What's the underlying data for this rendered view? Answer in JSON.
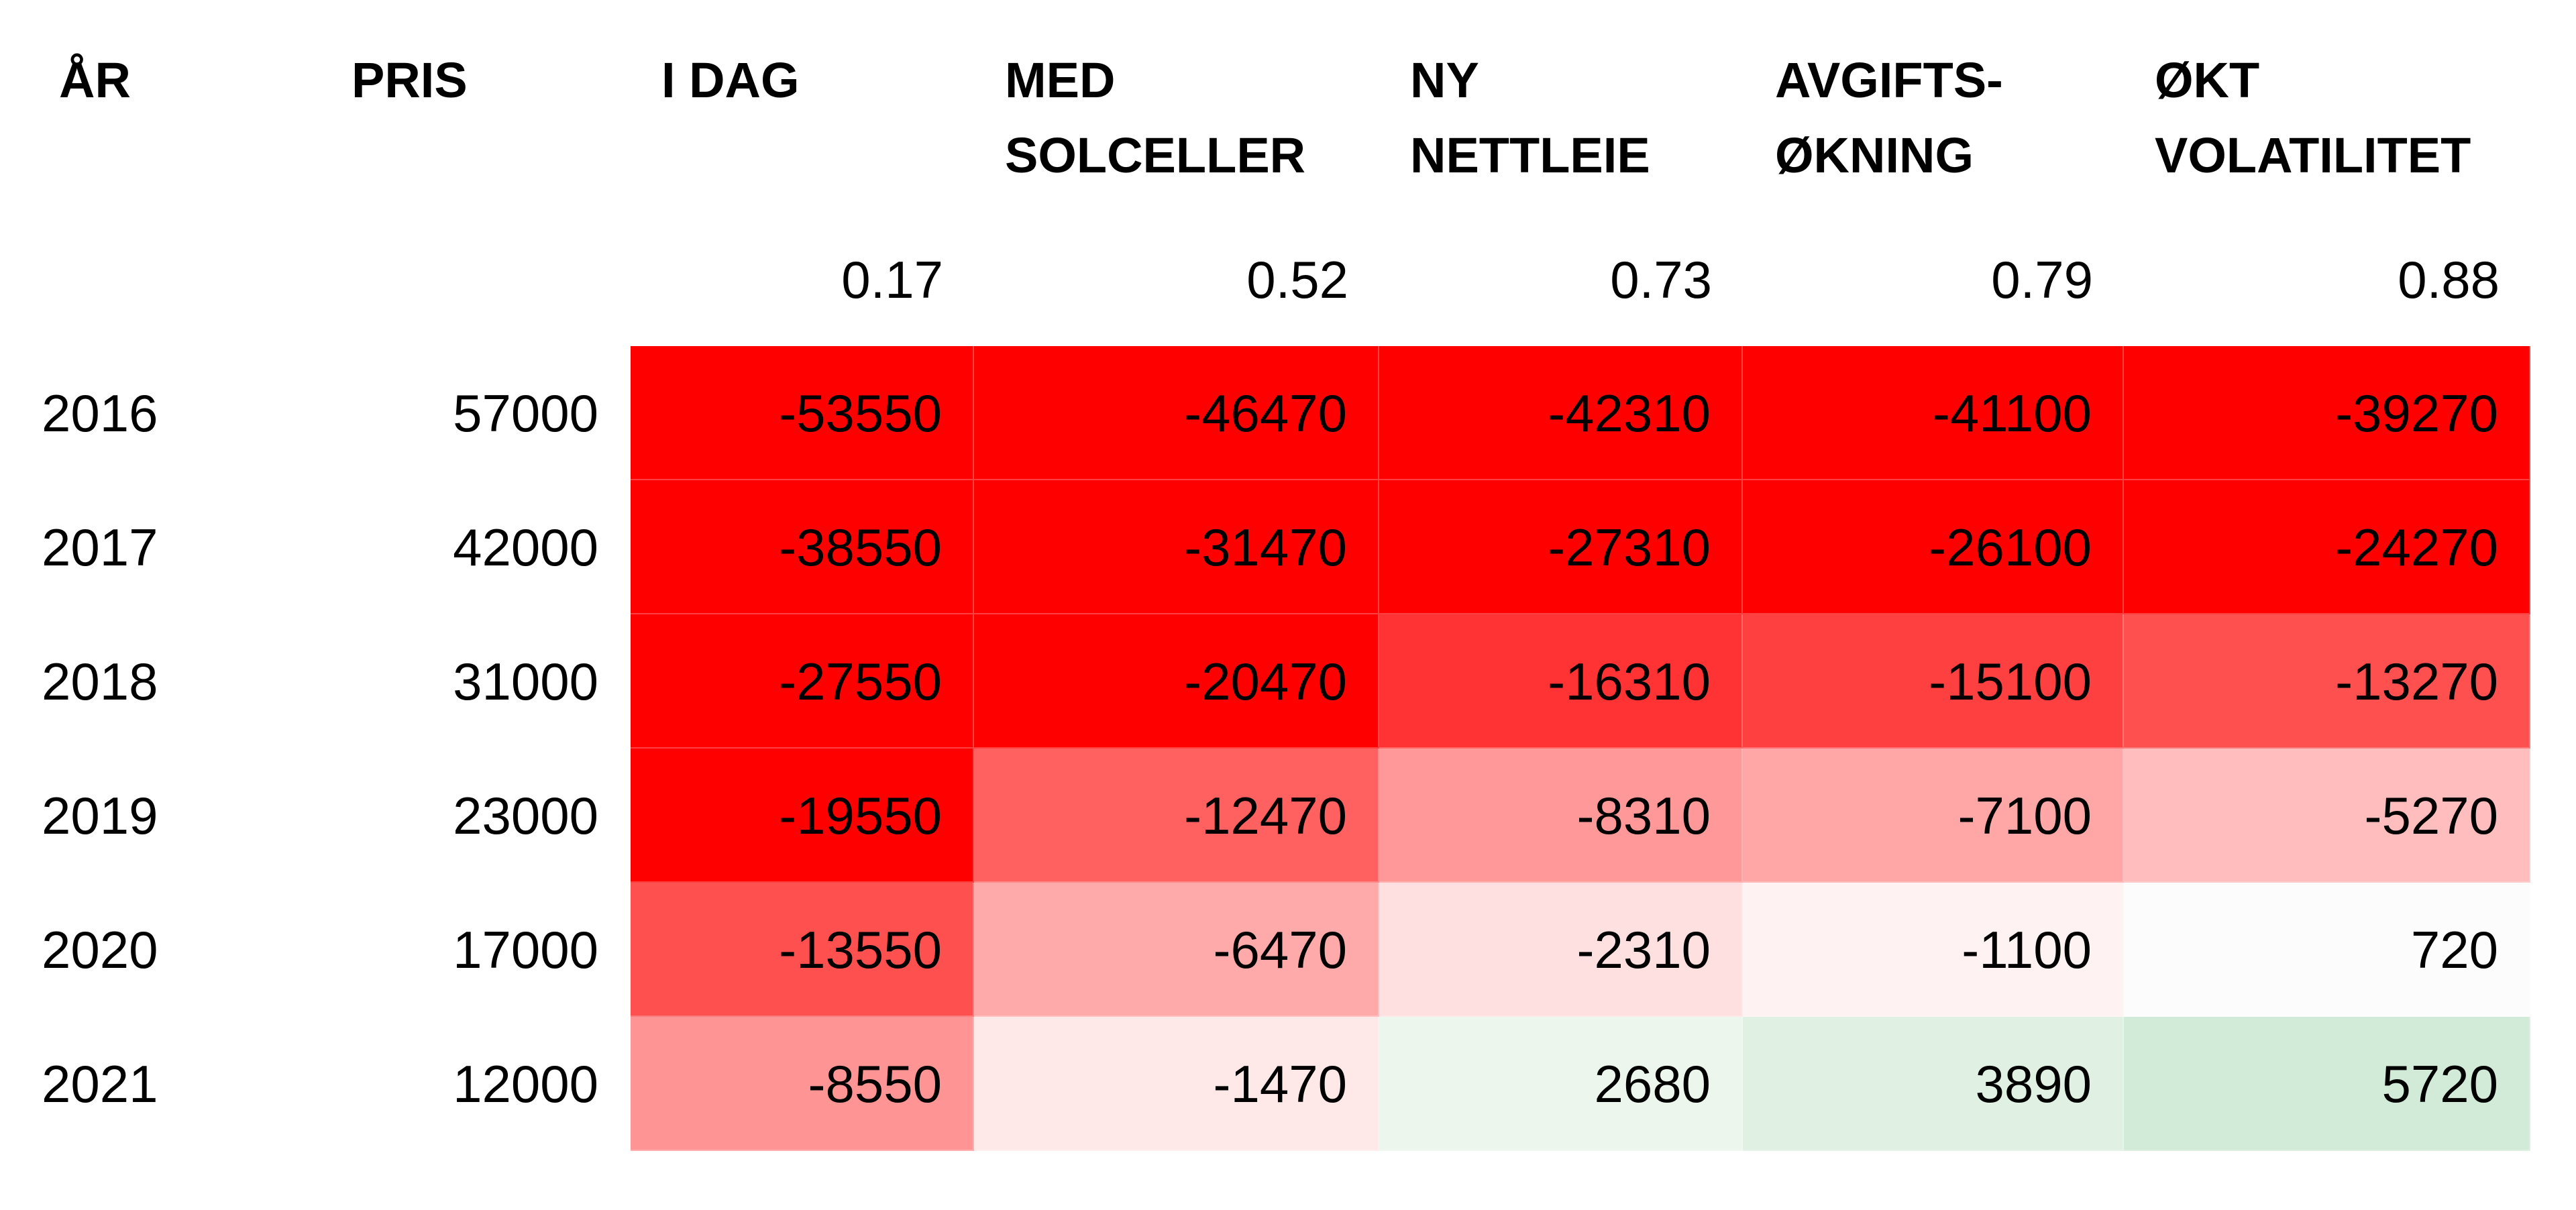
{
  "chart_data": {
    "type": "table",
    "headers": {
      "year": [
        "ÅR"
      ],
      "price": [
        "PRIS"
      ],
      "scenarios": [
        {
          "lines": [
            "I DAG"
          ],
          "factor": "0.17"
        },
        {
          "lines": [
            "MED",
            "SOLCELLER"
          ],
          "factor": "0.52"
        },
        {
          "lines": [
            "NY",
            "NETTLEIE"
          ],
          "factor": "0.73"
        },
        {
          "lines": [
            "AVGIFTS-",
            "ØKNING"
          ],
          "factor": "0.79"
        },
        {
          "lines": [
            "ØKT",
            "VOLATILITET"
          ],
          "factor": "0.88"
        }
      ]
    },
    "rows": [
      {
        "year": "2016",
        "price": "57000",
        "values": [
          "-53550",
          "-46470",
          "-42310",
          "-41100",
          "-39270"
        ],
        "colors": [
          "#ff0000",
          "#ff0000",
          "#ff0000",
          "#ff0000",
          "#ff0000"
        ]
      },
      {
        "year": "2017",
        "price": "42000",
        "values": [
          "-38550",
          "-31470",
          "-27310",
          "-26100",
          "-24270"
        ],
        "colors": [
          "#ff0000",
          "#ff0000",
          "#ff0000",
          "#ff0000",
          "#ff0000"
        ]
      },
      {
        "year": "2018",
        "price": "31000",
        "values": [
          "-27550",
          "-20470",
          "-16310",
          "-15100",
          "-13270"
        ],
        "colors": [
          "#ff0000",
          "#ff0000",
          "#ff3333",
          "#ff4040",
          "#ff5050"
        ]
      },
      {
        "year": "2019",
        "price": "23000",
        "values": [
          "-19550",
          "-12470",
          "-8310",
          "-7100",
          "-5270"
        ],
        "colors": [
          "#ff0000",
          "#ff6060",
          "#ff9999",
          "#ffa6a6",
          "#ffbdbd"
        ]
      },
      {
        "year": "2020",
        "price": "17000",
        "values": [
          "-13550",
          "-6470",
          "-2310",
          "-1100",
          "720"
        ],
        "colors": [
          "#ff5050",
          "#ffaaaa",
          "#ffe0e0",
          "#fff2f2",
          "#fbfcfb"
        ]
      },
      {
        "year": "2021",
        "price": "12000",
        "values": [
          "-8550",
          "-1470",
          "2680",
          "3890",
          "5720"
        ],
        "colors": [
          "#ff9494",
          "#ffe8e8",
          "#ecf6ec",
          "#e0f1e3",
          "#d2ebd8"
        ]
      }
    ]
  }
}
